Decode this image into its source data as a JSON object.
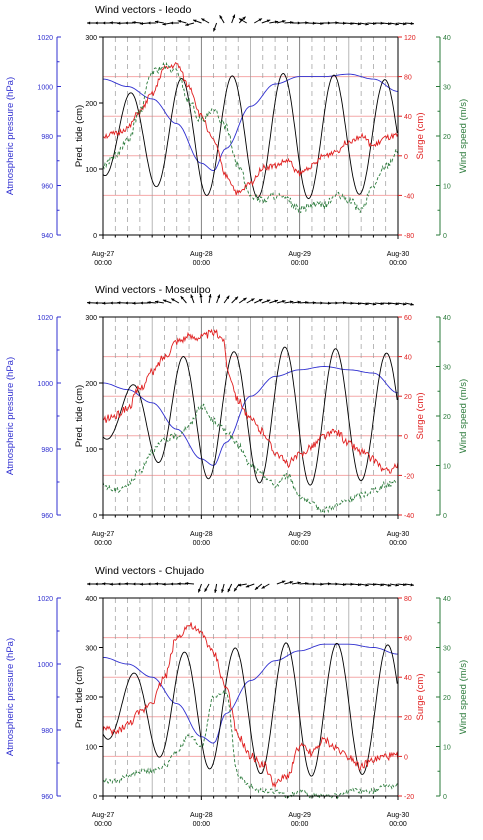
{
  "colors": {
    "pressure": "#3030d0",
    "tide": "#000000",
    "surge": "#e02020",
    "wind": "#2a7a3a",
    "surge_grid": "#f4a8a8",
    "vgrid_major": "#666666",
    "vgrid_minor": "#999999"
  },
  "chart_data": [
    {
      "type": "line",
      "wind_title": "Wind vectors - Ieodo",
      "left_axis_label": "Atmospheric pressure (hPa)",
      "tide_axis_label": "Pred. tide (cm)",
      "surge_axis_label": "Surge (cm)",
      "wind_axis_label": "Wind speed (m/s)",
      "x_ticks": [
        {
          "date": "Aug-27",
          "time": "00:00"
        },
        {
          "date": "Aug-28",
          "time": "00:00"
        },
        {
          "date": "Aug-29",
          "time": "00:00"
        },
        {
          "date": "Aug-30",
          "time": "00:00"
        }
      ],
      "xlim": [
        "2012-08-27 00:00",
        "2012-08-30 00:00"
      ],
      "pressure_ticks": [
        940,
        960,
        980,
        1000,
        1020
      ],
      "pressure_ylim": [
        940,
        1020
      ],
      "tide_ticks": [
        0,
        100,
        200,
        300
      ],
      "tide_ylim": [
        0,
        300
      ],
      "surge_ticks": [
        -80,
        -40,
        0,
        40,
        80,
        120
      ],
      "surge_ylim": [
        -80,
        120
      ],
      "wind_ticks": [
        0,
        10,
        20,
        30,
        40
      ],
      "wind_ylim": [
        0,
        40
      ],
      "wind_direction_deg": [
        270,
        270,
        270,
        272,
        268,
        270,
        275,
        265,
        270,
        280,
        260,
        270,
        285,
        255,
        290,
        300,
        200,
        330,
        20,
        45,
        300,
        60,
        70,
        80,
        75,
        85,
        90,
        88,
        92,
        95,
        90,
        88,
        92,
        95,
        98,
        100,
        95,
        92,
        96,
        100,
        98,
        95
      ],
      "series": [
        {
          "name": "Atmospheric pressure",
          "axis": "pressure",
          "x_hours": [
            0,
            6,
            12,
            18,
            24,
            27,
            30,
            36,
            42,
            48,
            54,
            60,
            66,
            72
          ],
          "values": [
            1003,
            1000,
            995,
            985,
            969,
            966,
            975,
            992,
            1001,
            1004,
            1004,
            1005,
            1003,
            998
          ]
        },
        {
          "name": "Pred. tide",
          "axis": "tide",
          "type": "tide",
          "mean": 150,
          "amp": [
            60,
            90,
            95,
            85
          ],
          "phase_hours": 3.6,
          "period_hours": 12.42
        },
        {
          "name": "Surge",
          "axis": "surge",
          "x_hours": [
            0,
            3,
            6,
            9,
            12,
            15,
            18,
            21,
            24,
            27,
            30,
            33,
            36,
            39,
            42,
            45,
            48,
            51,
            54,
            57,
            60,
            63,
            66,
            69,
            72
          ],
          "values": [
            20,
            22,
            28,
            45,
            62,
            88,
            92,
            70,
            40,
            15,
            -20,
            -38,
            -28,
            -12,
            -10,
            -5,
            -18,
            -10,
            0,
            5,
            15,
            20,
            10,
            18,
            20
          ],
          "noise": 3
        },
        {
          "name": "Wind speed",
          "axis": "wind",
          "x_hours": [
            0,
            3,
            6,
            9,
            12,
            15,
            18,
            21,
            24,
            27,
            30,
            33,
            36,
            39,
            42,
            45,
            48,
            51,
            54,
            57,
            60,
            63,
            66,
            69,
            72
          ],
          "values": [
            14,
            16,
            19,
            25,
            33,
            34,
            33,
            27,
            23,
            25,
            22,
            14,
            8,
            7,
            8,
            7,
            5,
            6,
            6,
            8,
            7,
            5,
            10,
            14,
            17
          ],
          "noise": 0.8
        }
      ]
    },
    {
      "type": "line",
      "wind_title": "Wind vectors - Moseulpo",
      "left_axis_label": "Atmospheric pressure (hPa)",
      "tide_axis_label": "Pred. tide (cm)",
      "surge_axis_label": "Surge (cm)",
      "wind_axis_label": "Wind speed (m/s)",
      "x_ticks": [
        {
          "date": "Aug-27",
          "time": "00:00"
        },
        {
          "date": "Aug-28",
          "time": "00:00"
        },
        {
          "date": "Aug-29",
          "time": "00:00"
        },
        {
          "date": "Aug-30",
          "time": "00:00"
        }
      ],
      "xlim": [
        "2012-08-27 00:00",
        "2012-08-30 00:00"
      ],
      "pressure_ticks": [
        960,
        980,
        1000,
        1020
      ],
      "pressure_ylim": [
        960,
        1020
      ],
      "tide_ticks": [
        0,
        100,
        200,
        300
      ],
      "tide_ylim": [
        0,
        300
      ],
      "surge_ticks": [
        -40,
        -20,
        0,
        20,
        40,
        60
      ],
      "surge_ylim": [
        -40,
        60
      ],
      "wind_ticks": [
        0,
        10,
        20,
        30,
        40
      ],
      "wind_ylim": [
        0,
        40
      ],
      "wind_direction_deg": [
        272,
        270,
        268,
        270,
        272,
        270,
        268,
        270,
        275,
        280,
        290,
        300,
        320,
        340,
        355,
        10,
        20,
        35,
        45,
        55,
        60,
        65,
        70,
        72,
        75,
        80,
        82,
        85,
        88,
        90,
        92,
        90,
        88,
        92,
        95,
        98,
        100,
        96,
        94,
        98,
        100,
        102
      ],
      "series": [
        {
          "name": "Atmospheric pressure",
          "axis": "pressure",
          "x_hours": [
            0,
            6,
            12,
            18,
            24,
            27,
            30,
            36,
            42,
            48,
            54,
            60,
            66,
            72
          ],
          "values": [
            1000,
            998,
            994,
            986,
            977,
            975,
            982,
            996,
            1002,
            1004,
            1005,
            1004,
            1003,
            997
          ]
        },
        {
          "name": "Pred. tide",
          "axis": "tide",
          "type": "tide",
          "mean": 150,
          "amp": [
            35,
            95,
            105,
            95
          ],
          "phase_hours": 4.0,
          "period_hours": 12.42
        },
        {
          "name": "Surge",
          "axis": "surge",
          "x_hours": [
            0,
            3,
            6,
            9,
            12,
            15,
            18,
            21,
            24,
            27,
            29,
            31,
            33,
            36,
            39,
            42,
            45,
            48,
            51,
            54,
            57,
            60,
            63,
            66,
            69,
            72
          ],
          "values": [
            8,
            10,
            14,
            24,
            32,
            40,
            48,
            50,
            50,
            52,
            50,
            30,
            18,
            8,
            2,
            -8,
            -14,
            -10,
            -5,
            0,
            2,
            -4,
            -8,
            -12,
            -18,
            -15
          ],
          "noise": 2
        },
        {
          "name": "Wind speed",
          "axis": "wind",
          "x_hours": [
            0,
            3,
            6,
            9,
            12,
            15,
            18,
            21,
            24,
            27,
            30,
            33,
            36,
            39,
            42,
            45,
            48,
            51,
            54,
            57,
            60,
            63,
            66,
            69,
            72
          ],
          "values": [
            6,
            5,
            6,
            9,
            13,
            15,
            16,
            18,
            22,
            19,
            17,
            14,
            10,
            8,
            6,
            8,
            4,
            2,
            1,
            2,
            3,
            4,
            5,
            6,
            7
          ],
          "noise": 0.7
        }
      ]
    },
    {
      "type": "line",
      "wind_title": "Wind vectors - Chujado",
      "left_axis_label": "Atmospheric pressure (hPa)",
      "tide_axis_label": "Pred. tide (cm)",
      "surge_axis_label": "Surge (cm)",
      "wind_axis_label": "Wind speed (m/s)",
      "x_ticks": [
        {
          "date": "Aug-27",
          "time": "00:00"
        },
        {
          "date": "Aug-28",
          "time": "00:00"
        },
        {
          "date": "Aug-29",
          "time": "00:00"
        },
        {
          "date": "Aug-30",
          "time": "00:00"
        }
      ],
      "xlim": [
        "2012-08-27 00:00",
        "2012-08-30 00:00"
      ],
      "pressure_ticks": [
        960,
        980,
        1000,
        1020
      ],
      "pressure_ylim": [
        960,
        1020
      ],
      "tide_ticks": [
        0,
        100,
        200,
        300,
        400
      ],
      "tide_ylim": [
        0,
        400
      ],
      "surge_ticks": [
        -20,
        0,
        20,
        40,
        60,
        80
      ],
      "surge_ylim": [
        -20,
        80
      ],
      "wind_ticks": [
        0,
        10,
        20,
        30,
        40
      ],
      "wind_ylim": [
        0,
        40
      ],
      "wind_direction_deg": [
        270,
        270,
        272,
        268,
        270,
        272,
        270,
        268,
        270,
        272,
        268,
        270,
        272,
        275,
        200,
        210,
        190,
        195,
        205,
        215,
        260,
        250,
        230,
        240,
        70,
        75,
        80,
        85,
        90,
        92,
        88,
        90,
        95,
        92,
        96,
        100,
        94,
        98,
        102,
        100,
        96,
        98
      ],
      "series": [
        {
          "name": "Atmospheric pressure",
          "axis": "pressure",
          "x_hours": [
            0,
            6,
            12,
            18,
            24,
            27,
            30,
            36,
            42,
            48,
            54,
            60,
            66,
            72
          ],
          "values": [
            1002,
            1000,
            996,
            988,
            978,
            976,
            985,
            995,
            1001,
            1004,
            1006,
            1006,
            1005,
            1003
          ]
        },
        {
          "name": "Pred. tide",
          "axis": "tide",
          "type": "tide",
          "mean": 175,
          "amp": [
            60,
            120,
            135,
            130
          ],
          "phase_hours": 4.3,
          "period_hours": 12.42
        },
        {
          "name": "Surge",
          "axis": "surge",
          "x_hours": [
            0,
            3,
            6,
            9,
            12,
            15,
            18,
            21,
            24,
            27,
            30,
            33,
            36,
            39,
            42,
            45,
            48,
            51,
            54,
            57,
            60,
            63,
            66,
            69,
            72
          ],
          "values": [
            14,
            12,
            16,
            22,
            28,
            40,
            60,
            66,
            62,
            52,
            35,
            10,
            0,
            -4,
            -14,
            -10,
            5,
            2,
            8,
            4,
            0,
            -5,
            -2,
            0,
            0
          ],
          "noise": 2
        },
        {
          "name": "Wind speed",
          "axis": "wind",
          "x_hours": [
            0,
            3,
            6,
            9,
            12,
            15,
            18,
            21,
            24,
            27,
            30,
            33,
            36,
            39,
            42,
            45,
            48,
            51,
            54,
            57,
            60,
            63,
            66,
            69,
            72
          ],
          "values": [
            3,
            3,
            4,
            5,
            5,
            6,
            9,
            12,
            10,
            20,
            21,
            4,
            2,
            1,
            1,
            0,
            1,
            0,
            0,
            0,
            1,
            1,
            1,
            2,
            2
          ],
          "noise": 0.5
        }
      ]
    }
  ]
}
